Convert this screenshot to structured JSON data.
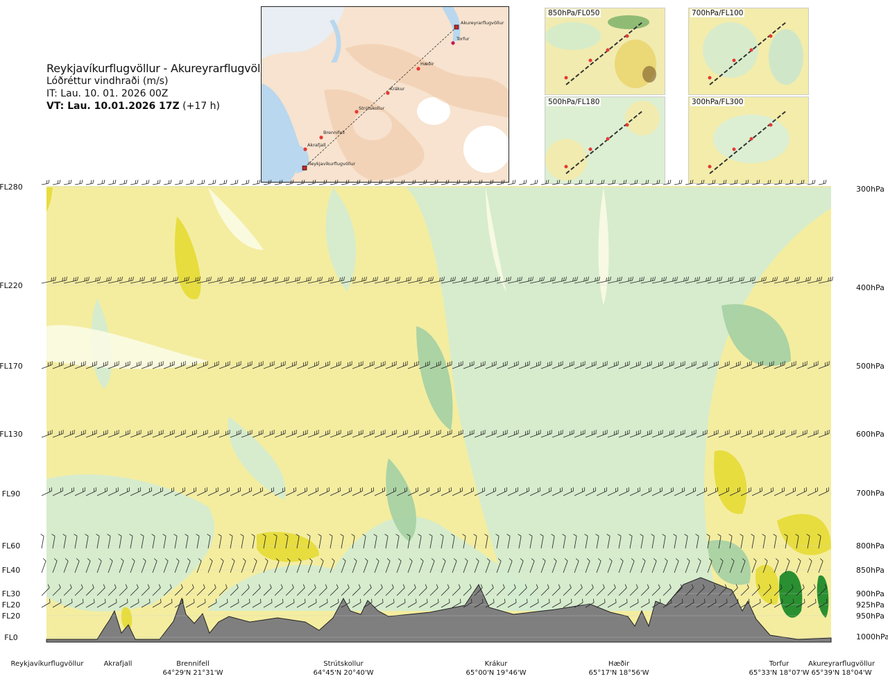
{
  "header": {
    "route": "Reykjavíkurflugvöllur - Akureyrarflugvöllur",
    "subtitle": "Lóðréttur vindhraði (m/s)",
    "it": "IT: Lau. 10. 01. 2026 00Z",
    "vt_bold": "VT: Lau. 10.01.2026 17Z",
    "vt_offset": "(+17 h)"
  },
  "map": {
    "points": [
      "Akureyrarflugvöllur",
      "Torfur",
      "Hæðir",
      "Krákur",
      "Strútskollur",
      "Brennifell",
      "Akrafjall",
      "Reykjavíkurflugvöllur"
    ]
  },
  "mini_maps": [
    "850hPa/FL050",
    "700hPa/FL100",
    "500hPa/FL180",
    "300hPa/FL300"
  ],
  "chart_data": {
    "type": "heatmap",
    "title": "Lóðréttur vindhraði (m/s)",
    "levels": [
      {
        "fl": "FL280",
        "hpa": "300hPa"
      },
      {
        "fl": "FL220",
        "hpa": "400hPa"
      },
      {
        "fl": "FL170",
        "hpa": "500hPa"
      },
      {
        "fl": "FL130",
        "hpa": "600hPa"
      },
      {
        "fl": "FL90",
        "hpa": "700hPa"
      },
      {
        "fl": "FL60",
        "hpa": "800hPa"
      },
      {
        "fl": "FL40",
        "hpa": "850hPa"
      },
      {
        "fl": "FL30",
        "hpa": "900hPa"
      },
      {
        "fl": "FL20",
        "hpa": "925hPa"
      },
      {
        "fl": "FL20",
        "hpa": "950hPa"
      },
      {
        "fl": "FL0",
        "hpa": "1000hPa"
      }
    ],
    "stations": [
      {
        "name": "Reykjavíkurflugvöllur",
        "coord": ""
      },
      {
        "name": "Akrafjall",
        "coord": ""
      },
      {
        "name": "Brennifell",
        "coord": "64°29'N 21°31'W"
      },
      {
        "name": "Strútskollur",
        "coord": "64°45'N 20°40'W"
      },
      {
        "name": "Krákur",
        "coord": "65°00'N 19°46'W"
      },
      {
        "name": "Hæðir",
        "coord": "65°17'N 18°56'W"
      },
      {
        "name": "Torfur",
        "coord": "65°33'N 18°07'W"
      },
      {
        "name": "Akureyrarflugvöllur",
        "coord": "65°39'N 18°04'W"
      }
    ],
    "colors": {
      "strong_down": "#e6dc3a",
      "down": "#f4eda0",
      "weak": "#fbfbe4",
      "up": "#d4ecd0",
      "strong_up": "#a8d2a4",
      "very_strong_up": "#1f8a2a",
      "terrain": "#7f7f7f"
    }
  }
}
